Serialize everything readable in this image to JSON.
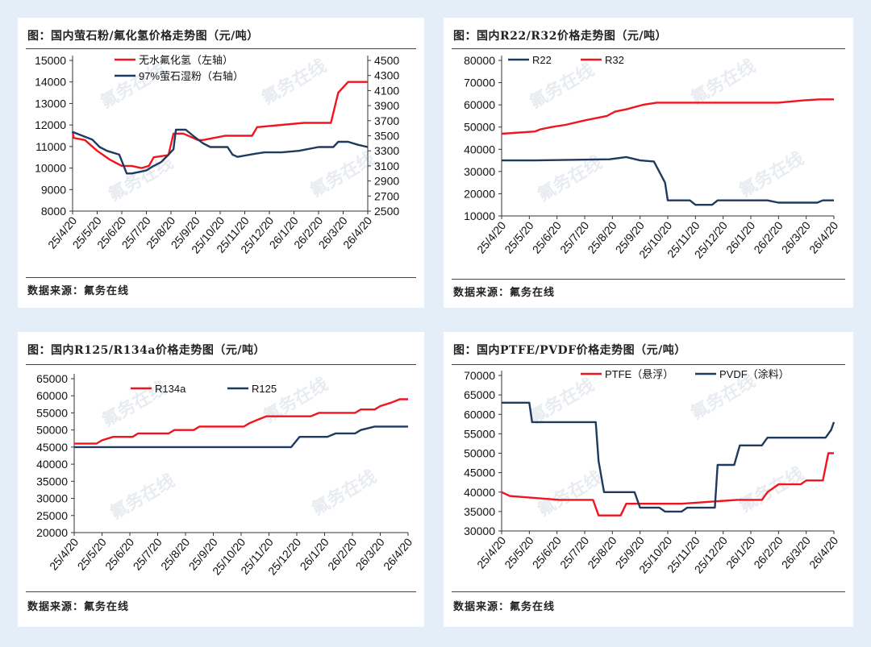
{
  "source_label": "数据来源：氟务在线",
  "watermark": "氟务在线",
  "colors": {
    "red": "#f0141e",
    "blue": "#1f3a5f",
    "axis": "#333333"
  },
  "chart_data": [
    {
      "type": "line",
      "title": "图：国内萤石粉/氟化氢价格走势图（元/吨）",
      "categories": [
        "25/4/20",
        "25/5/20",
        "25/6/20",
        "25/7/20",
        "25/8/20",
        "25/9/20",
        "25/10/20",
        "25/11/20",
        "25/12/20",
        "26/1/20",
        "26/2/20",
        "26/3/20",
        "26/4/20"
      ],
      "y_left": {
        "min": 8000,
        "max": 15000,
        "step": 1000,
        "ticks": [
          "8000",
          "9000",
          "10000",
          "11000",
          "12000",
          "13000",
          "14000",
          "15000"
        ]
      },
      "y_right": {
        "min": 2500,
        "max": 4500,
        "step": 200,
        "ticks": [
          "2500",
          "2700",
          "2900",
          "3100",
          "3300",
          "3500",
          "3700",
          "3900",
          "4100",
          "4300",
          "4500"
        ]
      },
      "series": [
        {
          "name": "无水氟化氢（左轴）",
          "color": "red",
          "axis": "left",
          "points": [
            [
              0,
              11700
            ],
            [
              0.05,
              11400
            ],
            [
              0.5,
              11300
            ],
            [
              1,
              10800
            ],
            [
              1.5,
              10400
            ],
            [
              2,
              10100
            ],
            [
              2.4,
              10100
            ],
            [
              2.8,
              10000
            ],
            [
              3.1,
              10100
            ],
            [
              3.3,
              10500
            ],
            [
              3.9,
              10600
            ],
            [
              4.1,
              11600
            ],
            [
              4.5,
              11600
            ],
            [
              5.1,
              11300
            ],
            [
              5.3,
              11300
            ],
            [
              6.2,
              11500
            ],
            [
              7.3,
              11500
            ],
            [
              7.5,
              11900
            ],
            [
              9.4,
              12100
            ],
            [
              10.5,
              12100
            ],
            [
              10.8,
              13500
            ],
            [
              11.2,
              14000
            ],
            [
              12,
              14000
            ]
          ]
        },
        {
          "name": "97%萤石湿粉（右轴）",
          "color": "blue",
          "axis": "right",
          "points": [
            [
              0,
              3550
            ],
            [
              0.4,
              3500
            ],
            [
              0.8,
              3450
            ],
            [
              1.1,
              3350
            ],
            [
              1.4,
              3300
            ],
            [
              1.9,
              3250
            ],
            [
              2.2,
              3000
            ],
            [
              2.4,
              3000
            ],
            [
              2.7,
              3020
            ],
            [
              3.0,
              3040
            ],
            [
              3.3,
              3100
            ],
            [
              3.6,
              3150
            ],
            [
              3.9,
              3250
            ],
            [
              4.1,
              3320
            ],
            [
              4.2,
              3580
            ],
            [
              4.6,
              3580
            ],
            [
              4.9,
              3500
            ],
            [
              5.1,
              3450
            ],
            [
              5.3,
              3400
            ],
            [
              5.6,
              3350
            ],
            [
              6.3,
              3350
            ],
            [
              6.5,
              3250
            ],
            [
              6.7,
              3220
            ],
            [
              7.4,
              3260
            ],
            [
              7.8,
              3280
            ],
            [
              8.5,
              3280
            ],
            [
              9.2,
              3300
            ],
            [
              10,
              3350
            ],
            [
              10.6,
              3350
            ],
            [
              10.8,
              3420
            ],
            [
              11.2,
              3420
            ],
            [
              11.6,
              3380
            ],
            [
              12,
              3350
            ]
          ]
        }
      ]
    },
    {
      "type": "line",
      "title": "图：国内R22/R32价格走势图（元/吨）",
      "categories": [
        "25/4/20",
        "25/5/20",
        "25/6/20",
        "25/7/20",
        "25/8/20",
        "25/9/20",
        "25/10/20",
        "25/11/20",
        "25/12/20",
        "26/1/20",
        "26/2/20",
        "26/3/20",
        "26/4/20"
      ],
      "y_left": {
        "min": 10000,
        "max": 80000,
        "step": 10000,
        "ticks": [
          "10000",
          "20000",
          "30000",
          "40000",
          "50000",
          "60000",
          "70000",
          "80000"
        ]
      },
      "series": [
        {
          "name": "R22",
          "color": "blue",
          "axis": "left",
          "points": [
            [
              0,
              35000
            ],
            [
              1.2,
              35000
            ],
            [
              3.9,
              35500
            ],
            [
              4.5,
              36500
            ],
            [
              5,
              35000
            ],
            [
              5.5,
              34500
            ],
            [
              5.9,
              25000
            ],
            [
              6,
              17000
            ],
            [
              6.8,
              17000
            ],
            [
              7,
              15000
            ],
            [
              7.6,
              15000
            ],
            [
              7.8,
              17000
            ],
            [
              9.6,
              17000
            ],
            [
              10,
              16000
            ],
            [
              11.4,
              16000
            ],
            [
              11.6,
              17000
            ],
            [
              12,
              17000
            ]
          ]
        },
        {
          "name": "R32",
          "color": "red",
          "axis": "left",
          "points": [
            [
              0,
              47000
            ],
            [
              1.2,
              48000
            ],
            [
              1.4,
              49000
            ],
            [
              1.8,
              50000
            ],
            [
              2.3,
              51000
            ],
            [
              3,
              53000
            ],
            [
              3.8,
              55000
            ],
            [
              4.1,
              57000
            ],
            [
              4.5,
              58000
            ],
            [
              5.1,
              60000
            ],
            [
              5.6,
              61000
            ],
            [
              7,
              61000
            ],
            [
              7.5,
              61000
            ],
            [
              9,
              61000
            ],
            [
              10,
              61000
            ],
            [
              10.9,
              62000
            ],
            [
              11.5,
              62500
            ],
            [
              12,
              62500
            ]
          ]
        }
      ]
    },
    {
      "type": "line",
      "title": "图：国内R125/R134a价格走势图（元/吨）",
      "categories": [
        "25/4/20",
        "25/5/20",
        "25/6/20",
        "25/7/20",
        "25/8/20",
        "25/9/20",
        "25/10/20",
        "25/11/20",
        "25/12/20",
        "26/1/20",
        "26/2/20",
        "26/3/20",
        "26/4/20"
      ],
      "y_left": {
        "min": 20000,
        "max": 65000,
        "step": 5000,
        "ticks": [
          "20000",
          "25000",
          "30000",
          "35000",
          "40000",
          "45000",
          "50000",
          "55000",
          "60000",
          "65000"
        ]
      },
      "series": [
        {
          "name": "R134a",
          "color": "red",
          "axis": "left",
          "points": [
            [
              0,
              46000
            ],
            [
              0.8,
              46000
            ],
            [
              1,
              47000
            ],
            [
              1.4,
              48000
            ],
            [
              2.1,
              48000
            ],
            [
              2.3,
              49000
            ],
            [
              3.4,
              49000
            ],
            [
              3.6,
              50000
            ],
            [
              4.3,
              50000
            ],
            [
              4.5,
              51000
            ],
            [
              6.1,
              51000
            ],
            [
              6.3,
              52000
            ],
            [
              6.6,
              53000
            ],
            [
              6.9,
              54000
            ],
            [
              8.5,
              54000
            ],
            [
              8.8,
              55000
            ],
            [
              10.1,
              55000
            ],
            [
              10.3,
              56000
            ],
            [
              10.8,
              56000
            ],
            [
              11,
              57000
            ],
            [
              11.4,
              58000
            ],
            [
              11.7,
              59000
            ],
            [
              12,
              59000
            ]
          ]
        },
        {
          "name": "R125",
          "color": "blue",
          "axis": "left",
          "points": [
            [
              0,
              45000
            ],
            [
              7.8,
              45000
            ],
            [
              8.1,
              48000
            ],
            [
              9.1,
              48000
            ],
            [
              9.4,
              49000
            ],
            [
              10.1,
              49000
            ],
            [
              10.3,
              50000
            ],
            [
              10.8,
              51000
            ],
            [
              12,
              51000
            ]
          ]
        }
      ]
    },
    {
      "type": "line",
      "title": "图：国内PTFE/PVDF价格走势图（元/吨）",
      "categories": [
        "25/4/20",
        "25/5/20",
        "25/6/20",
        "25/7/20",
        "25/8/20",
        "25/9/20",
        "25/10/20",
        "25/11/20",
        "25/12/20",
        "26/1/20",
        "26/2/20",
        "26/3/20",
        "26/4/20"
      ],
      "y_left": {
        "min": 30000,
        "max": 70000,
        "step": 5000,
        "ticks": [
          "30000",
          "35000",
          "40000",
          "45000",
          "50000",
          "55000",
          "60000",
          "65000",
          "70000"
        ]
      },
      "series": [
        {
          "name": "PTFE（悬浮）",
          "color": "red",
          "axis": "left",
          "points": [
            [
              0,
              40000
            ],
            [
              0.3,
              39000
            ],
            [
              2.1,
              38000
            ],
            [
              3.3,
              38000
            ],
            [
              3.5,
              34000
            ],
            [
              4.3,
              34000
            ],
            [
              4.5,
              37000
            ],
            [
              6.5,
              37000
            ],
            [
              8.5,
              38000
            ],
            [
              9.4,
              38000
            ],
            [
              9.6,
              40000
            ],
            [
              10,
              42000
            ],
            [
              10.8,
              42000
            ],
            [
              11,
              43000
            ],
            [
              11.6,
              43000
            ],
            [
              11.8,
              50000
            ],
            [
              12,
              50000
            ]
          ]
        },
        {
          "name": "PVDF（涂料）",
          "color": "blue",
          "axis": "left",
          "points": [
            [
              0,
              63000
            ],
            [
              1,
              63000
            ],
            [
              1.1,
              58000
            ],
            [
              3.4,
              58000
            ],
            [
              3.5,
              48000
            ],
            [
              3.7,
              40000
            ],
            [
              4.8,
              40000
            ],
            [
              5.0,
              36000
            ],
            [
              5.7,
              36000
            ],
            [
              5.9,
              35000
            ],
            [
              6.5,
              35000
            ],
            [
              6.7,
              36000
            ],
            [
              7.7,
              36000
            ],
            [
              7.8,
              47000
            ],
            [
              8.4,
              47000
            ],
            [
              8.6,
              52000
            ],
            [
              9.4,
              52000
            ],
            [
              9.6,
              54000
            ],
            [
              11.7,
              54000
            ],
            [
              11.9,
              56000
            ],
            [
              12,
              58000
            ]
          ]
        }
      ]
    }
  ]
}
